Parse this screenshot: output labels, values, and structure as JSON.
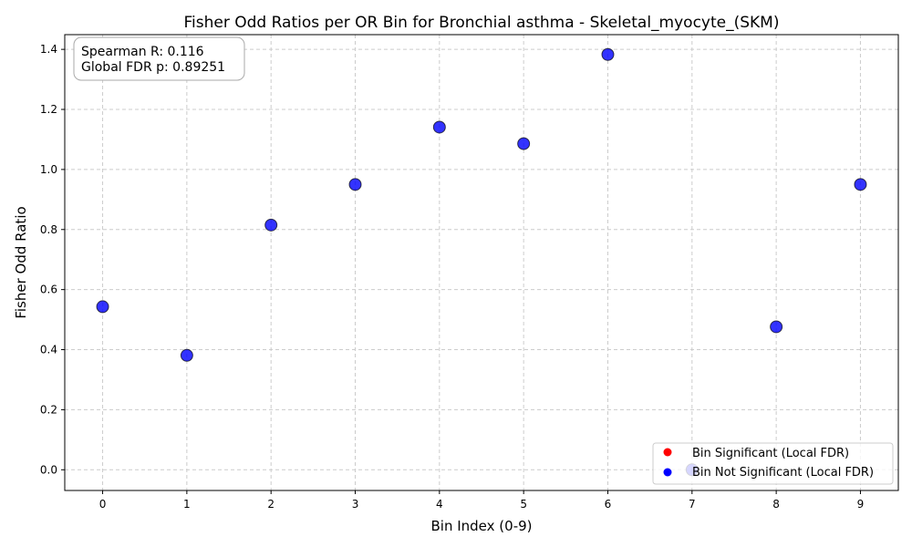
{
  "chart_data": {
    "type": "scatter",
    "title": "Fisher Odd Ratios per OR Bin for Bronchial asthma - Skeletal_myocyte_(SKM)",
    "xlabel": "Bin Index (0-9)",
    "ylabel": "Fisher Odd Ratio",
    "xlim": [
      -0.45,
      9.45
    ],
    "ylim": [
      -0.069,
      1.449
    ],
    "x_ticks": [
      0,
      1,
      2,
      3,
      4,
      5,
      6,
      7,
      8,
      9
    ],
    "y_ticks": [
      0.0,
      0.2,
      0.4,
      0.6,
      0.8,
      1.0,
      1.2,
      1.4
    ],
    "y_tick_labels": [
      "0.0",
      "0.2",
      "0.4",
      "0.6",
      "0.8",
      "1.0",
      "1.2",
      "1.4"
    ],
    "grid": true,
    "legend_position": "lower-right",
    "series": [
      {
        "name": "Bin Significant (Local FDR)",
        "color": "#ff0000",
        "points": []
      },
      {
        "name": "Bin Not Significant (Local FDR)",
        "color": "#0000ff",
        "points": [
          {
            "x": 0,
            "y": 0.543
          },
          {
            "x": 1,
            "y": 0.381
          },
          {
            "x": 2,
            "y": 0.815
          },
          {
            "x": 3,
            "y": 0.95
          },
          {
            "x": 4,
            "y": 1.141
          },
          {
            "x": 5,
            "y": 1.086
          },
          {
            "x": 6,
            "y": 1.383
          },
          {
            "x": 7,
            "y": 0.0
          },
          {
            "x": 8,
            "y": 0.476
          },
          {
            "x": 9,
            "y": 0.95
          }
        ]
      }
    ],
    "annotations": {
      "spearman": "Spearman R: 0.116",
      "global_fdr": "Global FDR p: 0.89251"
    }
  }
}
